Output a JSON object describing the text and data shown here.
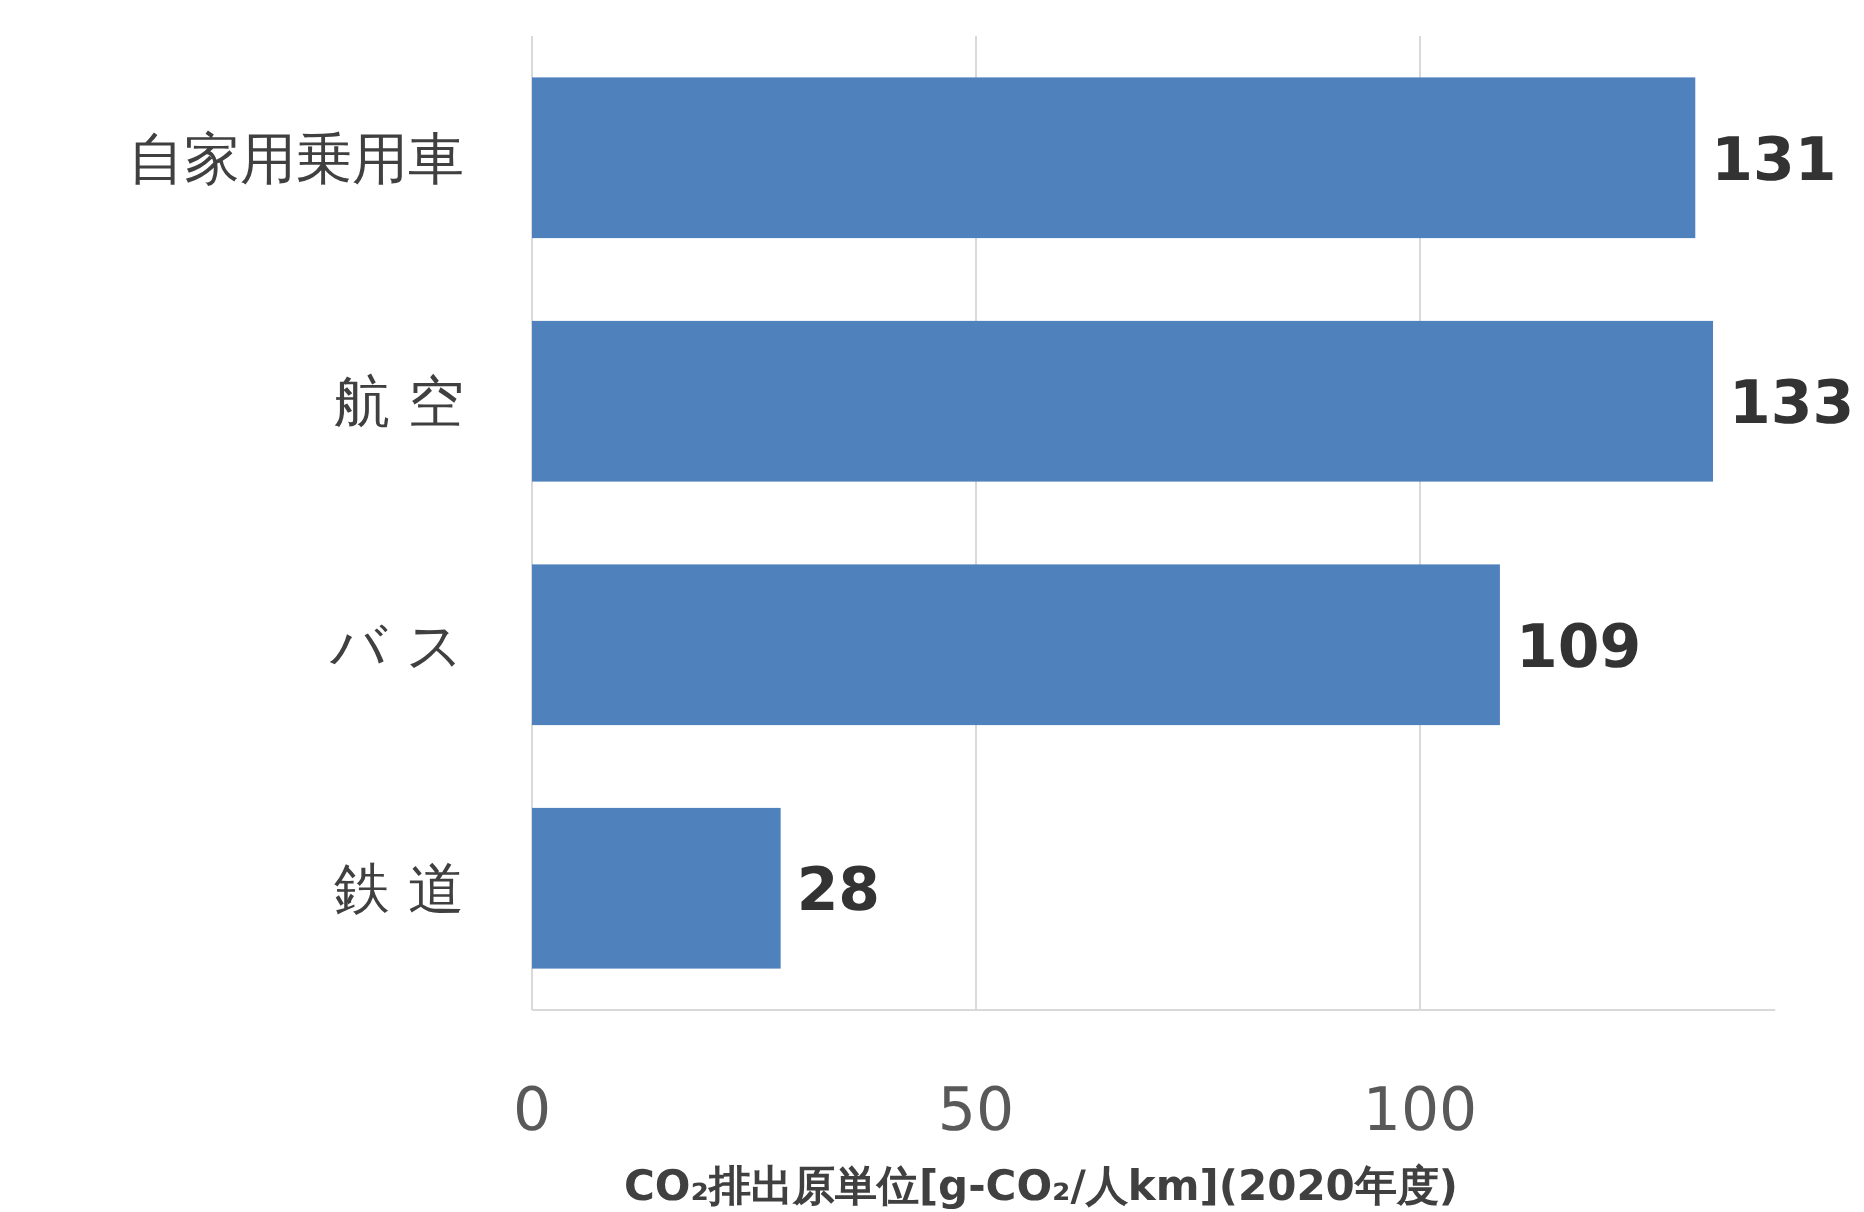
{
  "chart_data": {
    "type": "bar",
    "orientation": "horizontal",
    "categories": [
      "自家用乗用車",
      "航 空",
      "バ ス",
      "鉄 道"
    ],
    "values": [
      131,
      133,
      109,
      28
    ],
    "color": "#4f81bd",
    "data_labels": true,
    "xlim": [
      0,
      140
    ],
    "xticks": [
      0,
      50,
      100
    ],
    "grid": "x",
    "xlabel": "CO₂排出原単位[g-CO₂/人km](2020年度)"
  }
}
